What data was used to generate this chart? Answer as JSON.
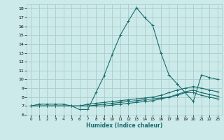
{
  "xlabel": "Humidex (Indice chaleur)",
  "xlim": [
    -0.5,
    23.5
  ],
  "ylim": [
    6,
    18.5
  ],
  "yticks": [
    6,
    7,
    8,
    9,
    10,
    11,
    12,
    13,
    14,
    15,
    16,
    17,
    18
  ],
  "xticks": [
    0,
    1,
    2,
    3,
    4,
    5,
    6,
    7,
    8,
    9,
    10,
    11,
    12,
    13,
    14,
    15,
    16,
    17,
    18,
    19,
    20,
    21,
    22,
    23
  ],
  "background_color": "#cceaea",
  "grid_color": "#aacccc",
  "line_color": "#1a6b6b",
  "lines": [
    {
      "x": [
        0,
        1,
        2,
        3,
        4,
        5,
        6,
        7,
        8,
        9,
        10,
        11,
        12,
        13,
        14,
        15,
        16,
        17,
        18,
        19,
        20,
        21,
        22,
        23
      ],
      "y": [
        7.0,
        7.2,
        7.2,
        7.2,
        7.2,
        7.0,
        6.6,
        6.6,
        8.5,
        10.4,
        12.8,
        15.0,
        16.6,
        18.1,
        17.0,
        16.1,
        13.0,
        10.5,
        9.5,
        8.5,
        7.5,
        10.5,
        10.2,
        10.0
      ]
    },
    {
      "x": [
        0,
        1,
        2,
        3,
        4,
        5,
        6,
        7,
        8,
        9,
        10,
        11,
        12,
        13,
        14,
        15,
        16,
        17,
        18,
        19,
        20,
        21,
        22,
        23
      ],
      "y": [
        7.0,
        7.0,
        7.0,
        7.0,
        7.0,
        7.0,
        7.0,
        7.2,
        7.3,
        7.4,
        7.5,
        7.6,
        7.7,
        7.8,
        7.9,
        8.0,
        8.2,
        8.5,
        8.8,
        9.0,
        9.2,
        9.0,
        8.8,
        8.6
      ]
    },
    {
      "x": [
        0,
        1,
        2,
        3,
        4,
        5,
        6,
        7,
        8,
        9,
        10,
        11,
        12,
        13,
        14,
        15,
        16,
        17,
        18,
        19,
        20,
        21,
        22,
        23
      ],
      "y": [
        7.0,
        7.0,
        7.0,
        7.0,
        7.0,
        7.0,
        7.0,
        7.0,
        7.1,
        7.2,
        7.3,
        7.4,
        7.5,
        7.6,
        7.7,
        7.8,
        7.9,
        8.0,
        8.3,
        8.6,
        8.8,
        8.5,
        8.3,
        8.1
      ]
    },
    {
      "x": [
        0,
        1,
        2,
        3,
        4,
        5,
        6,
        7,
        8,
        9,
        10,
        11,
        12,
        13,
        14,
        15,
        16,
        17,
        18,
        19,
        20,
        21,
        22,
        23
      ],
      "y": [
        7.0,
        7.0,
        7.0,
        7.0,
        7.0,
        7.0,
        7.0,
        7.0,
        7.0,
        7.0,
        7.1,
        7.2,
        7.3,
        7.4,
        7.5,
        7.6,
        7.8,
        8.0,
        8.2,
        8.5,
        8.5,
        8.2,
        8.0,
        7.8
      ]
    }
  ]
}
